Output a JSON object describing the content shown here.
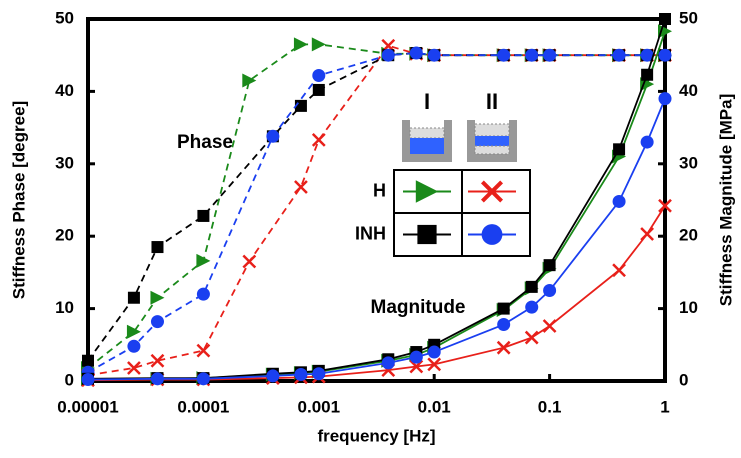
{
  "chart_data": {
    "type": "line",
    "x_log": true,
    "xlabel": "frequency [Hz]",
    "ylabel": "Stiffness Phase [degree]",
    "y2label": "Stiffness Magnitude [MPa]",
    "xlim": [
      1e-05,
      1
    ],
    "xticks": [
      1e-05,
      0.0001,
      0.001,
      0.01,
      0.1,
      1
    ],
    "ylim": [
      0,
      50
    ],
    "yticks": [
      0,
      10,
      20,
      30,
      40,
      50
    ],
    "y2lim": [
      0,
      50
    ],
    "y2ticks": [
      0,
      10,
      20,
      30,
      40,
      50
    ],
    "annotations": [
      "Phase",
      "Magnitude"
    ],
    "legend": {
      "columns": [
        "I",
        "II"
      ],
      "rows": [
        "H",
        "INH"
      ]
    },
    "series": [
      {
        "color": "#1a8a1a",
        "marker": "triangle",
        "dashed": true,
        "axis": "y",
        "x": [
          1e-05,
          2.5e-05,
          4e-05,
          0.0001,
          0.00025,
          0.0007,
          0.001,
          0.004,
          0.007,
          0.01,
          0.04,
          0.07,
          0.1,
          0.4,
          0.7,
          1
        ],
        "values": [
          1.8,
          6.8,
          11.5,
          16.6,
          41.5,
          46.5,
          46.5,
          45.2,
          45.2,
          45,
          45,
          45,
          45,
          45,
          45,
          45
        ]
      },
      {
        "color": "#e8201a",
        "marker": "x",
        "dashed": true,
        "axis": "y",
        "x": [
          1e-05,
          2.5e-05,
          4e-05,
          0.0001,
          0.00025,
          0.0007,
          0.001,
          0.004,
          0.007,
          0.01,
          0.04,
          0.07,
          0.1,
          0.4,
          0.7,
          1
        ],
        "values": [
          0.8,
          1.8,
          2.8,
          4.2,
          16.5,
          26.8,
          33.3,
          46.3,
          45.2,
          45,
          45,
          45,
          45,
          45,
          45,
          45
        ]
      },
      {
        "color": "#000000",
        "marker": "square",
        "dashed": true,
        "axis": "y",
        "x": [
          1e-05,
          2.5e-05,
          4e-05,
          0.0001,
          0.0004,
          0.0007,
          0.001,
          0.004,
          0.007,
          0.01,
          0.04,
          0.07,
          0.1,
          0.4,
          0.7,
          1
        ],
        "values": [
          2.8,
          11.5,
          18.5,
          22.8,
          33.8,
          38,
          40.2,
          45,
          45.3,
          45,
          45,
          45,
          45,
          45,
          45,
          45
        ]
      },
      {
        "color": "#1a3ff0",
        "marker": "circle",
        "dashed": true,
        "axis": "y",
        "x": [
          1e-05,
          2.5e-05,
          4e-05,
          0.0001,
          0.0004,
          0.001,
          0.004,
          0.007,
          0.01,
          0.04,
          0.07,
          0.1,
          0.4,
          0.7,
          1
        ],
        "values": [
          1.2,
          4.8,
          8.2,
          12,
          33.8,
          42.2,
          45,
          45.3,
          45,
          45,
          45,
          45,
          45,
          45,
          45
        ]
      },
      {
        "color": "#1a8a1a",
        "marker": "triangle",
        "dashed": false,
        "axis": "y2",
        "x": [
          1e-05,
          4e-05,
          0.0001,
          0.0004,
          0.0007,
          0.001,
          0.004,
          0.007,
          0.01,
          0.04,
          0.07,
          0.1,
          0.4,
          0.7,
          1
        ],
        "values": [
          0.2,
          0.3,
          0.4,
          0.9,
          1.1,
          1.3,
          2.8,
          3.6,
          4.6,
          9.8,
          12.8,
          15.5,
          31,
          41,
          48.3
        ]
      },
      {
        "color": "#e8201a",
        "marker": "x",
        "dashed": false,
        "axis": "y2",
        "x": [
          1e-05,
          4e-05,
          0.0001,
          0.0004,
          0.0007,
          0.001,
          0.004,
          0.007,
          0.01,
          0.04,
          0.07,
          0.1,
          0.4,
          0.7,
          1
        ],
        "values": [
          0.1,
          0.2,
          0.2,
          0.4,
          0.5,
          0.6,
          1.5,
          2,
          2.3,
          4.6,
          6,
          7.6,
          15.3,
          20.3,
          24.2
        ]
      },
      {
        "color": "#000000",
        "marker": "square",
        "dashed": false,
        "axis": "y2",
        "x": [
          1e-05,
          4e-05,
          0.0001,
          0.0004,
          0.0007,
          0.001,
          0.004,
          0.007,
          0.01,
          0.04,
          0.07,
          0.1,
          0.4,
          0.7,
          1
        ],
        "values": [
          0.3,
          0.4,
          0.4,
          1,
          1.2,
          1.4,
          3,
          4,
          5,
          10,
          13,
          16,
          32,
          42.3,
          50
        ]
      },
      {
        "color": "#1a3ff0",
        "marker": "circle",
        "dashed": false,
        "axis": "y2",
        "x": [
          1e-05,
          4e-05,
          0.0001,
          0.0004,
          0.0007,
          0.001,
          0.004,
          0.007,
          0.01,
          0.04,
          0.07,
          0.1,
          0.4,
          0.7,
          1
        ],
        "values": [
          0.2,
          0.3,
          0.3,
          0.7,
          0.9,
          1,
          2.5,
          3.3,
          4,
          7.8,
          10.2,
          12.5,
          24.8,
          33,
          39
        ]
      }
    ]
  }
}
